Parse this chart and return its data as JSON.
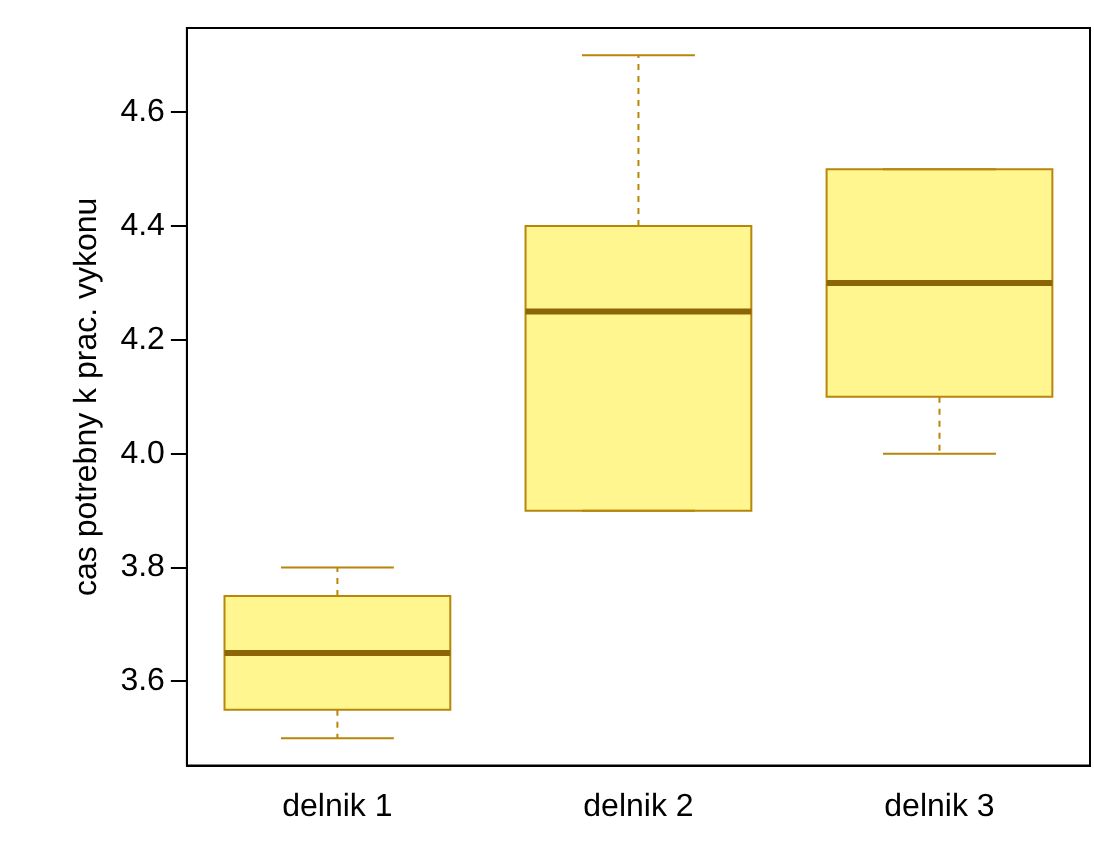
{
  "chart_data": {
    "type": "box",
    "ylabel": "cas potrebny k prac. vykonu",
    "categories": [
      "delnik 1",
      "delnik 2",
      "delnik 3"
    ],
    "boxes": [
      {
        "low": 3.5,
        "q1": 3.55,
        "median": 3.65,
        "q3": 3.75,
        "high": 3.8
      },
      {
        "low": 3.9,
        "q1": 3.9,
        "median": 4.25,
        "q3": 4.4,
        "high": 4.7
      },
      {
        "low": 4.0,
        "q1": 4.1,
        "median": 4.3,
        "q3": 4.5,
        "high": 4.5
      }
    ],
    "color": "#fff68f",
    "ylim": [
      3.452,
      4.748
    ],
    "yticks": [
      3.6,
      3.8,
      {
        "value": 4,
        "label": "4.0"
      },
      4.2,
      4.4,
      4.6
    ],
    "grid": false,
    "legend": false,
    "line_style": "dashed"
  }
}
